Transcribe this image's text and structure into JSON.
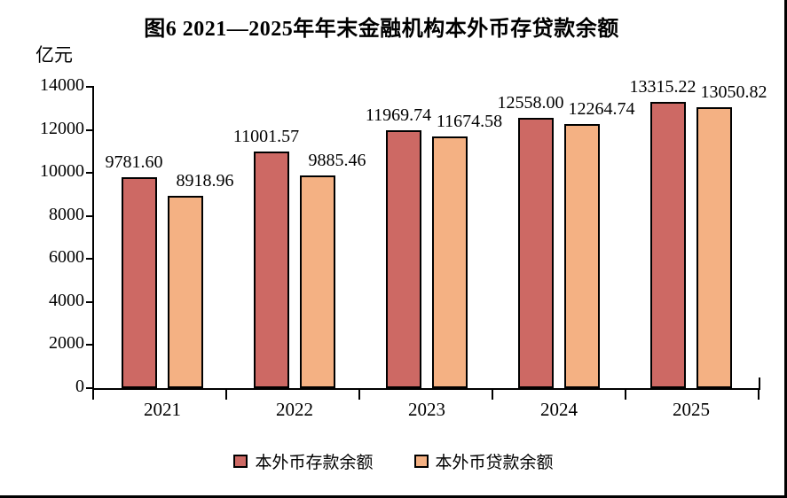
{
  "page": {
    "background_color": "#ffffff",
    "border_color": "#000000"
  },
  "chart_data": {
    "type": "bar",
    "title": "图6  2021—2025年年末金融机构本外币存贷款余额",
    "unit_label": "亿元",
    "categories": [
      "2021",
      "2022",
      "2023",
      "2024",
      "2025"
    ],
    "series": [
      {
        "name": "本外币存款余额",
        "key": "deposits",
        "color": "#CD6964",
        "values": [
          9781.6,
          11001.57,
          11969.74,
          12558.0,
          13315.22
        ],
        "labels": [
          "9781.60",
          "11001.57",
          "11969.74",
          "12558.00",
          "13315.22"
        ]
      },
      {
        "name": "本外币贷款余额",
        "key": "loans",
        "color": "#F4B183",
        "values": [
          8918.96,
          9885.46,
          11674.58,
          12264.74,
          13050.82
        ],
        "labels": [
          "8918.96",
          "9885.46",
          "11674.58",
          "12264.74",
          "13050.82"
        ]
      }
    ],
    "ylim": [
      0,
      14000
    ],
    "ytick_interval": 2000,
    "yticks": [
      "0",
      "2000",
      "4000",
      "6000",
      "8000",
      "10000",
      "12000",
      "14000"
    ],
    "xlabel": "",
    "ylabel": "亿元",
    "grid": false,
    "legend_position": "bottom",
    "bar_border_color": "#000000"
  }
}
